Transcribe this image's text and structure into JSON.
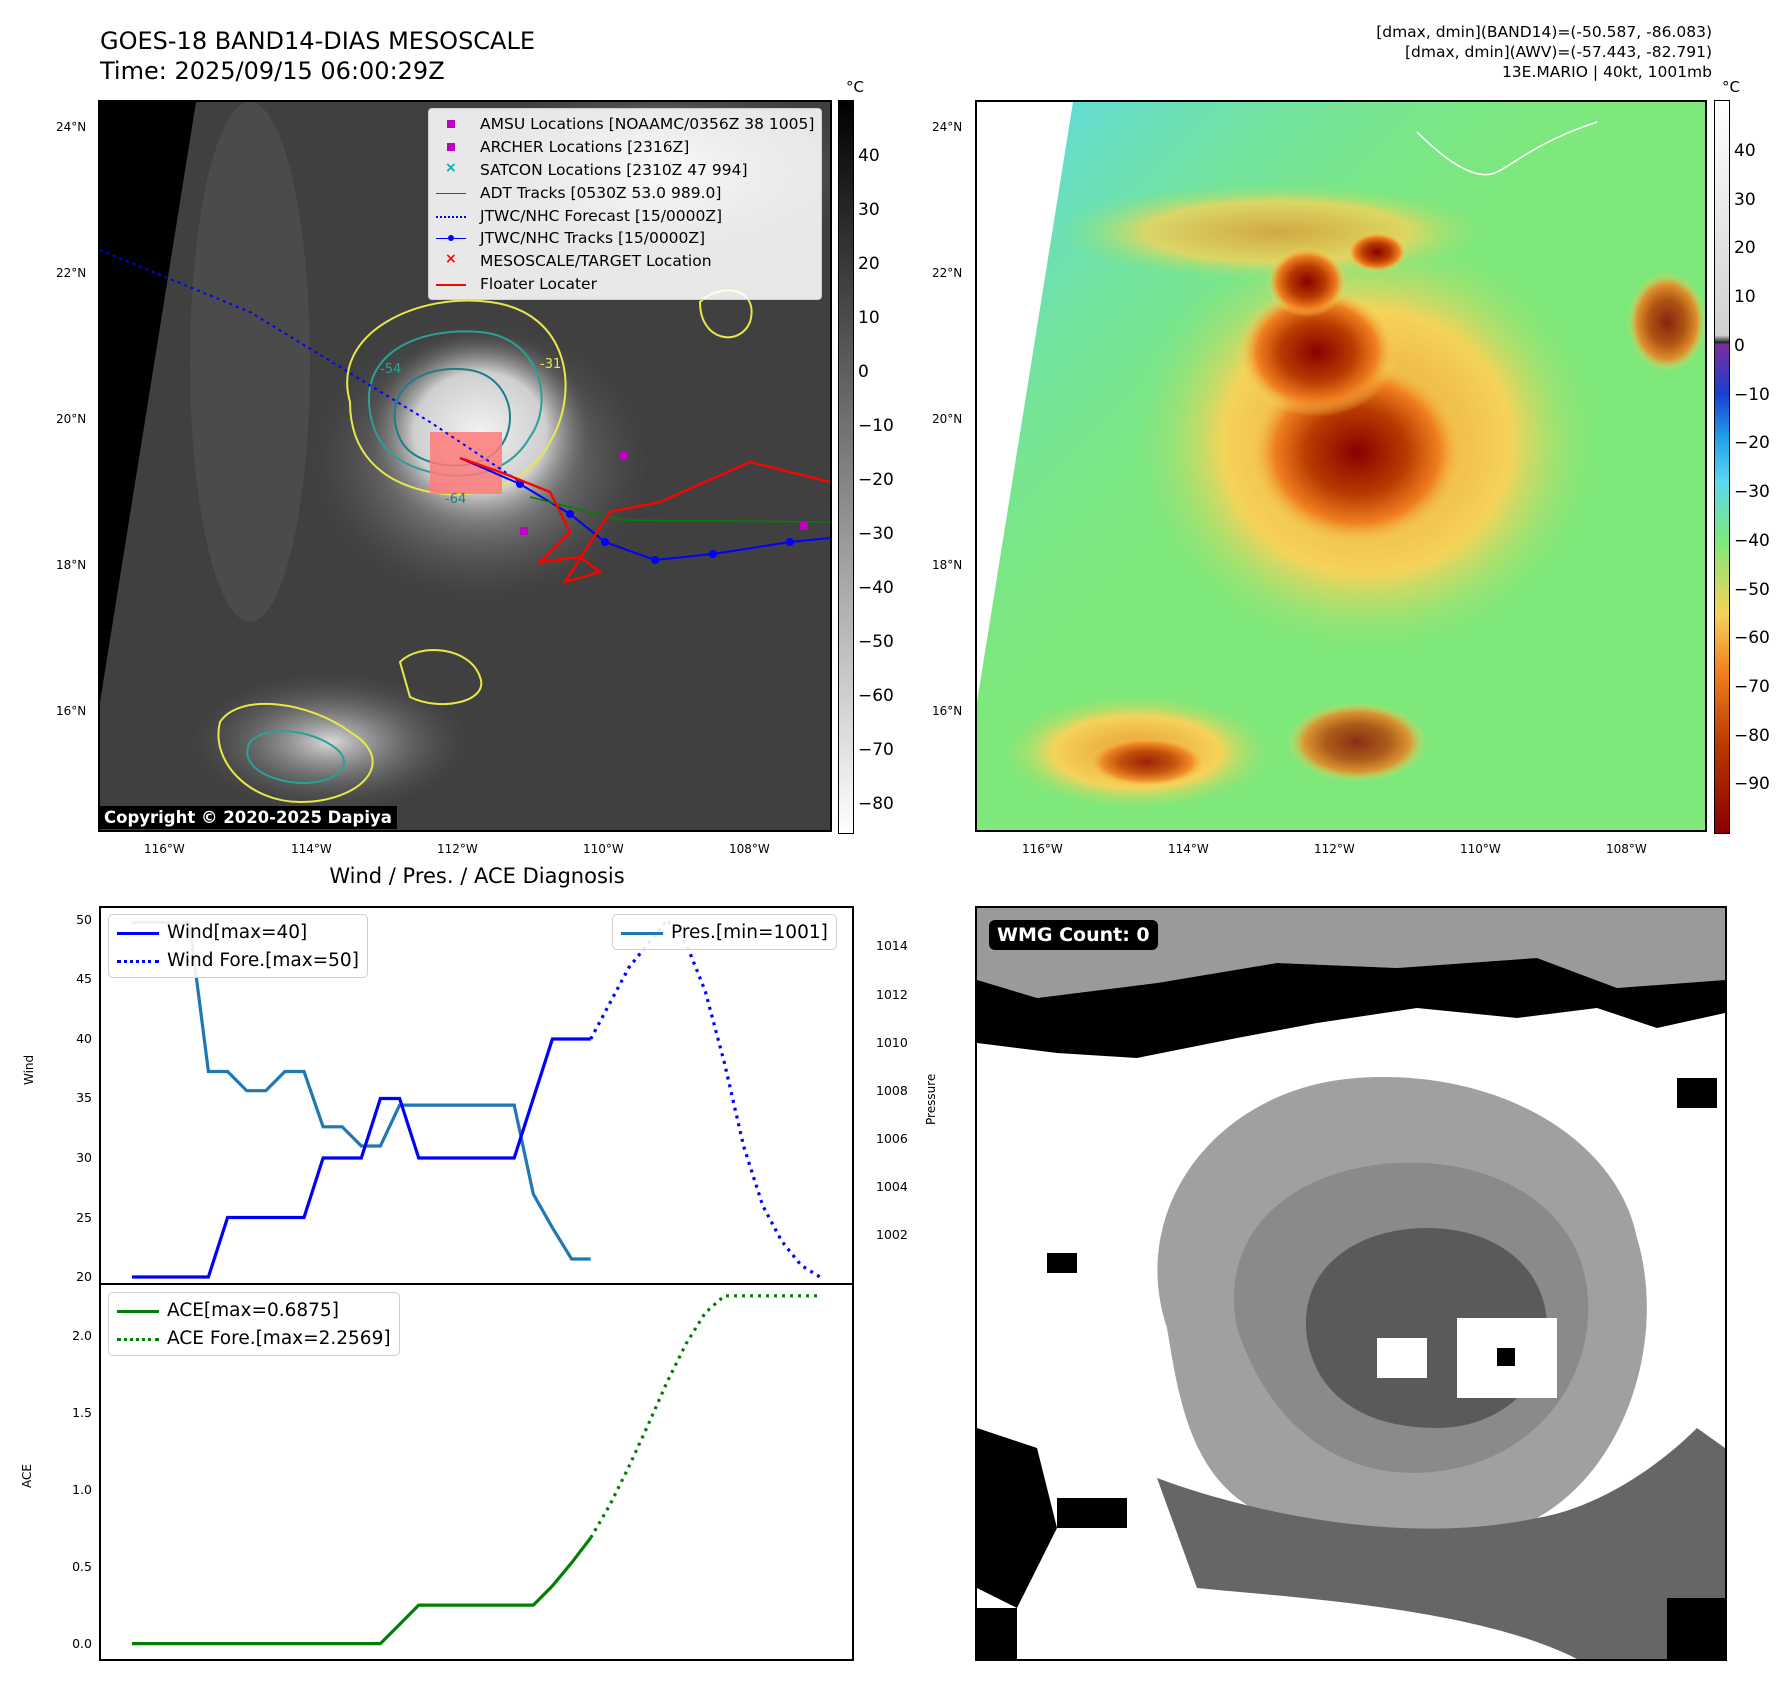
{
  "header": {
    "title": "GOES-18 BAND14-DIAS MESOSCALE",
    "time": "Time: 2025/09/15 06:00:29Z",
    "info_line1": "[dmax, dmin](BAND14)=(-50.587, -86.083)",
    "info_line2": "[dmax, dmin](AWV)=(-57.443, -82.791)",
    "info_line3": "13E.MARIO | 40kt, 1001mb"
  },
  "maps": {
    "lat_labels": [
      "24°N",
      "22°N",
      "20°N",
      "18°N",
      "16°N"
    ],
    "lon_labels": [
      "116°W",
      "114°W",
      "112°W",
      "110°W",
      "108°W"
    ],
    "contour_labels": [
      "-31",
      "-54",
      "-64"
    ],
    "unit": "°C",
    "copyright": "Copyright © 2020-2025 Dapiya",
    "left_colorbar_ticks": [
      "40",
      "30",
      "20",
      "10",
      "0",
      "−10",
      "−20",
      "−30",
      "−40",
      "−50",
      "−60",
      "−70",
      "−80"
    ],
    "right_colorbar_ticks": [
      "40",
      "30",
      "20",
      "10",
      "0",
      "−10",
      "−20",
      "−30",
      "−40",
      "−50",
      "−60",
      "−70",
      "−80",
      "−90"
    ],
    "legend": [
      {
        "label": "AMSU Locations [NOAAMC/0356Z 38 1005]",
        "marker": "square",
        "color": "#c000c0"
      },
      {
        "label": "ARCHER Locations [2316Z]",
        "marker": "square",
        "color": "#c000c0"
      },
      {
        "label": "SATCON Locations [2310Z 47 994]",
        "marker": "x",
        "color": "#00b0b0"
      },
      {
        "label": "ADT Tracks [0530Z 53.0 989.0]",
        "marker": "line",
        "color": "#008000"
      },
      {
        "label": "JTWC/NHC Forecast [15/0000Z]",
        "marker": "dotted",
        "color": "#0000ff"
      },
      {
        "label": "JTWC/NHC Tracks [15/0000Z]",
        "marker": "line-dot",
        "color": "#0000ff"
      },
      {
        "label": "MESOSCALE/TARGET Location",
        "marker": "x",
        "color": "#ff0000"
      },
      {
        "label": "Floater Locater",
        "marker": "line",
        "color": "#ff0000"
      }
    ]
  },
  "diagnosis": {
    "title": "Wind / Pres. / ACE Diagnosis",
    "wind_ylabel": "Wind",
    "pres_ylabel": "Pressure",
    "ace_ylabel": "ACE",
    "legend_wind": "Wind[max=40]",
    "legend_wind_fore": "Wind Fore.[max=50]",
    "legend_pres": "Pres.[min=1001]",
    "legend_ace": "ACE[max=0.6875]",
    "legend_ace_fore": "ACE Fore.[max=2.2569]",
    "wmg_label": "WMG Count: 0"
  },
  "colors": {
    "wind": "#0000ff",
    "pressure": "#1f77b4",
    "ace": "#008000",
    "track": "#ff0000"
  },
  "chart_data": [
    {
      "type": "line",
      "name": "wind",
      "xlim": [
        0,
        36
      ],
      "ylim": [
        19.5,
        51
      ],
      "yticks": [
        20,
        25,
        30,
        35,
        40,
        45,
        50
      ],
      "series": [
        {
          "name": "Wind[max=40]",
          "style": "solid",
          "x": [
            0,
            1,
            2,
            3,
            4,
            5,
            6,
            7,
            8,
            9,
            10,
            11,
            12,
            13,
            14,
            15,
            16,
            17,
            18,
            19,
            20,
            21,
            22,
            23,
            24
          ],
          "values": [
            20,
            20,
            20,
            20,
            20,
            25,
            25,
            25,
            25,
            25,
            30,
            30,
            30,
            35,
            35,
            30,
            30,
            30,
            30,
            30,
            30,
            35,
            40,
            40,
            40
          ]
        },
        {
          "name": "Wind Fore.[max=50]",
          "style": "dotted",
          "x": [
            24,
            25,
            26,
            27,
            28,
            29,
            30,
            31,
            32,
            33,
            34,
            35,
            36
          ],
          "values": [
            40,
            43,
            46,
            48,
            50,
            48,
            44,
            38,
            31,
            26,
            23,
            21,
            20
          ]
        }
      ]
    },
    {
      "type": "line",
      "name": "pressure",
      "ylim": [
        1000.0,
        1015.6
      ],
      "yticks": [
        1002,
        1004,
        1006,
        1008,
        1010,
        1012,
        1014
      ],
      "series": [
        {
          "name": "Pres.[min=1001]",
          "x": [
            0,
            1,
            2,
            3,
            4,
            5,
            6,
            7,
            8,
            9,
            10,
            11,
            12,
            13,
            14,
            15,
            16,
            17,
            18,
            19,
            20,
            21,
            22,
            23,
            24
          ],
          "values": [
            1015,
            1015,
            1015,
            1015,
            1008.8,
            1008.8,
            1008,
            1008,
            1008.8,
            1008.8,
            1006.5,
            1006.5,
            1005.7,
            1005.7,
            1007.4,
            1007.4,
            1007.4,
            1007.4,
            1007.4,
            1007.4,
            1007.4,
            1003.7,
            1002.3,
            1001,
            1001
          ]
        }
      ]
    },
    {
      "type": "line",
      "name": "ace",
      "xlim": [
        0,
        36
      ],
      "ylim": [
        -0.1,
        2.33
      ],
      "yticks": [
        0.0,
        0.5,
        1.0,
        1.5,
        2.0
      ],
      "series": [
        {
          "name": "ACE[max=0.6875]",
          "style": "solid",
          "x": [
            0,
            4,
            8,
            12,
            13,
            14,
            15,
            16,
            17,
            18,
            19,
            20,
            21,
            22,
            23,
            24
          ],
          "values": [
            0,
            0,
            0,
            0,
            0,
            0.125,
            0.25,
            0.25,
            0.25,
            0.25,
            0.25,
            0.25,
            0.25,
            0.375,
            0.525,
            0.6875
          ]
        },
        {
          "name": "ACE Fore.[max=2.2569]",
          "style": "dotted",
          "x": [
            24,
            25,
            26,
            27,
            28,
            29,
            30,
            31,
            32,
            33,
            34,
            35,
            36
          ],
          "values": [
            0.6875,
            0.9,
            1.15,
            1.42,
            1.7,
            1.95,
            2.15,
            2.26,
            2.26,
            2.26,
            2.26,
            2.26,
            2.26
          ]
        }
      ]
    }
  ]
}
